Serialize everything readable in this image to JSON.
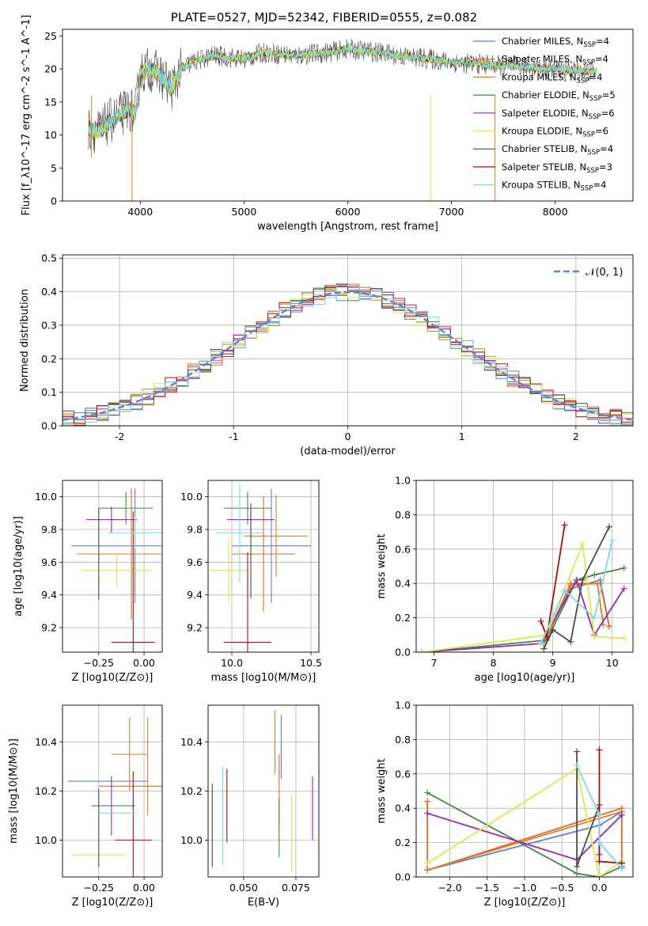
{
  "title": "PLATE=0527, MJD=52342, FIBERID=0555, z=0.082",
  "colors": {
    "Chabrier MILES": "#5b84d6",
    "Salpeter MILES": "#e06c1e",
    "Kroupa MILES": "#e07b2e",
    "Chabrier ELODIE": "#4f7f55",
    "Salpeter ELODIE": "#9b27b0",
    "Kroupa ELODIE": "#d8ea4e",
    "Chabrier STELIB": "#4a4a4a",
    "Salpeter STELIB": "#a90f0f",
    "Kroupa STELIB": "#7fd8e8"
  },
  "chart_data": [
    {
      "id": "spectrum",
      "type": "line",
      "xlabel": "wavelength [Angstrom, rest frame]",
      "ylabel": "Flux [f_λ10^-17 erg cm^-2 s^-1 A^-1]",
      "xlim": [
        3250,
        8750
      ],
      "ylim": [
        0,
        26
      ],
      "xticks": [
        4000,
        5000,
        6000,
        7000,
        8000
      ],
      "yticks": [
        0,
        5,
        10,
        15,
        20,
        25
      ],
      "legend_position": "right",
      "legend": [
        {
          "label": "Chabrier MILES",
          "sub": "SSP",
          "n": "=4"
        },
        {
          "label": "Salpeter MILES",
          "sub": "SSP",
          "n": "=4"
        },
        {
          "label": "Kroupa MILES",
          "sub": "SSP",
          "n": "=4"
        },
        {
          "label": "Chabrier ELODIE",
          "sub": "SSP",
          "n": "=5"
        },
        {
          "label": "Salpeter ELODIE",
          "sub": "SSP",
          "n": "=6"
        },
        {
          "label": "Kroupa ELODIE",
          "sub": "SSP",
          "n": "=6"
        },
        {
          "label": "Chabrier STELIB",
          "sub": "SSP",
          "n": "=4"
        },
        {
          "label": "Salpeter STELIB",
          "sub": "SSP",
          "n": "=3"
        },
        {
          "label": "Kroupa STELIB",
          "sub": "SSP",
          "n": "=4"
        }
      ],
      "observed_envelope": {
        "x": [
          3500,
          3600,
          3700,
          3800,
          3900,
          3950,
          4000,
          4100,
          4200,
          4300,
          4400,
          4500,
          4700,
          5000,
          5200,
          5500,
          5800,
          6000,
          6300,
          6500,
          6800,
          7000,
          7200,
          7500,
          7800,
          8000,
          8200,
          8400
        ],
        "y": [
          11,
          10.5,
          12,
          13,
          14,
          13,
          19.5,
          20,
          19,
          17,
          20,
          21,
          22,
          21.5,
          22.5,
          22,
          22.5,
          23,
          22.5,
          22,
          21.5,
          21,
          20.8,
          20.5,
          20.2,
          20,
          19.8,
          19.5
        ]
      },
      "dips": [
        {
          "x": 3530,
          "y": 6.5
        },
        {
          "x": 3920,
          "y": 0
        },
        {
          "x": 6800,
          "y": 0
        },
        {
          "x": 7420,
          "y": 0
        }
      ]
    },
    {
      "id": "residuals",
      "type": "histogram",
      "xlabel": "(data-model)/error",
      "ylabel": "Normed distribution",
      "xlim": [
        -2.5,
        2.5
      ],
      "ylim": [
        0,
        0.51
      ],
      "xticks": [
        -2,
        -1,
        0,
        1,
        2
      ],
      "yticks": [
        0.0,
        0.1,
        0.2,
        0.3,
        0.4,
        0.5
      ],
      "grid": true,
      "legend": [
        {
          "label": "𝒩(0, 1)"
        }
      ],
      "bin_width": 0.1
    },
    {
      "id": "age-vs-Z",
      "type": "errorbar",
      "xlabel": "Z [log10(Z/Z⊙)]",
      "ylabel": "age [log10(age/yr)]",
      "xlim": [
        -0.45,
        0.1
      ],
      "ylim": [
        9.05,
        10.1
      ],
      "xticks": [
        -0.25,
        0.0
      ],
      "xticklabels": [
        "−0.25",
        "0.00"
      ],
      "yticks": [
        9.2,
        9.4,
        9.6,
        9.8,
        10.0
      ],
      "points": [
        {
          "model": "Chabrier MILES",
          "x": -0.05,
          "xerr": 0.35,
          "y": 9.7,
          "yerr": 0.35
        },
        {
          "model": "Salpeter MILES",
          "x": -0.07,
          "xerr": 0.3,
          "y": 9.65,
          "yerr": 0.4
        },
        {
          "model": "Kroupa MILES",
          "x": -0.07,
          "xerr": 0.3,
          "y": 9.65,
          "yerr": 0.3
        },
        {
          "model": "Chabrier ELODIE",
          "x": -0.1,
          "xerr": 0.15,
          "y": 9.93,
          "yerr": 0.1
        },
        {
          "model": "Salpeter ELODIE",
          "x": -0.18,
          "xerr": 0.14,
          "y": 9.86,
          "yerr": 0.08
        },
        {
          "model": "Kroupa ELODIE",
          "x": -0.15,
          "xerr": 0.2,
          "y": 9.55,
          "yerr": 0.1
        },
        {
          "model": "Chabrier STELIB",
          "x": -0.25,
          "xerr": 0.0,
          "y": 9.65,
          "yerr": 0.28
        },
        {
          "model": "Salpeter STELIB",
          "x": -0.06,
          "xerr": 0.12,
          "y": 9.11,
          "yerr": 0.8
        },
        {
          "model": "Kroupa STELIB",
          "x": -0.05,
          "xerr": 0.15,
          "y": 9.78,
          "yerr": 0.1
        }
      ]
    },
    {
      "id": "age-vs-mass",
      "type": "errorbar",
      "xlabel": "mass [log10(M/M⊙)]",
      "ylabel": "",
      "xlim": [
        9.85,
        10.55
      ],
      "ylim": [
        9.05,
        10.1
      ],
      "xticks": [
        10.0,
        10.5
      ],
      "yticks": [
        9.2,
        9.4,
        9.6,
        9.8,
        10.0
      ],
      "points": [
        {
          "model": "Chabrier MILES",
          "x": 10.25,
          "xerr": 0.25,
          "y": 9.7,
          "yerr": 0.35
        },
        {
          "model": "Salpeter MILES",
          "x": 10.2,
          "xerr": 0.2,
          "y": 9.65,
          "yerr": 0.35
        },
        {
          "model": "Kroupa MILES",
          "x": 10.28,
          "xerr": 0.2,
          "y": 9.76,
          "yerr": 0.25
        },
        {
          "model": "Chabrier ELODIE",
          "x": 10.1,
          "xerr": 0.15,
          "y": 9.93,
          "yerr": 0.1
        },
        {
          "model": "Salpeter ELODIE",
          "x": 10.12,
          "xerr": 0.15,
          "y": 9.86,
          "yerr": 0.1
        },
        {
          "model": "Kroupa ELODIE",
          "x": 9.98,
          "xerr": 0.12,
          "y": 9.55,
          "yerr": 0.2
        },
        {
          "model": "Chabrier STELIB",
          "x": 10.12,
          "xerr": 0.0,
          "y": 9.65,
          "yerr": 0.27
        },
        {
          "model": "Salpeter STELIB",
          "x": 10.1,
          "xerr": 0.15,
          "y": 9.11,
          "yerr": 0.55
        },
        {
          "model": "Kroupa STELIB",
          "x": 10.05,
          "xerr": 0.15,
          "y": 9.78,
          "yerr": 0.3
        }
      ]
    },
    {
      "id": "weight-vs-age",
      "type": "line",
      "xlabel": "age [log10(age/yr)]",
      "ylabel": "mass weight",
      "xlim": [
        6.7,
        10.35
      ],
      "ylim": [
        0.0,
        1.0
      ],
      "xticks": [
        7,
        8,
        9,
        10
      ],
      "yticks": [
        0.0,
        0.2,
        0.4,
        0.6,
        0.8,
        1.0
      ],
      "series": [
        {
          "model": "Chabrier MILES",
          "x": [
            8.85,
            9.3,
            9.8,
            9.95
          ],
          "y": [
            0.06,
            0.37,
            0.42,
            0.15
          ]
        },
        {
          "model": "Salpeter MILES",
          "x": [
            8.85,
            9.3,
            9.8,
            9.95
          ],
          "y": [
            0.05,
            0.4,
            0.4,
            0.15
          ]
        },
        {
          "model": "Kroupa MILES",
          "x": [
            8.85,
            9.3,
            9.75,
            9.85
          ],
          "y": [
            0.05,
            0.39,
            0.4,
            0.16
          ]
        },
        {
          "model": "Chabrier ELODIE",
          "x": [
            6.8,
            8.9,
            9.4,
            9.7,
            10.2
          ],
          "y": [
            0.0,
            0.07,
            0.42,
            0.45,
            0.49
          ]
        },
        {
          "model": "Salpeter ELODIE",
          "x": [
            6.8,
            8.8,
            9.4,
            9.7,
            10.2
          ],
          "y": [
            0.0,
            0.05,
            0.42,
            0.1,
            0.37
          ]
        },
        {
          "model": "Kroupa ELODIE",
          "x": [
            6.8,
            8.9,
            9.5,
            9.7,
            10.2
          ],
          "y": [
            0.0,
            0.1,
            0.63,
            0.09,
            0.08
          ]
        },
        {
          "model": "Chabrier STELIB",
          "x": [
            8.85,
            9.0,
            9.3,
            9.5,
            9.95
          ],
          "y": [
            0.02,
            0.13,
            0.06,
            0.42,
            0.73
          ]
        },
        {
          "model": "Salpeter STELIB",
          "x": [
            8.8,
            8.9,
            9.2
          ],
          "y": [
            0.18,
            0.09,
            0.74
          ]
        },
        {
          "model": "Kroupa STELIB",
          "x": [
            8.8,
            9.2,
            9.7,
            10.0
          ],
          "y": [
            0.05,
            0.36,
            0.2,
            0.65
          ]
        }
      ]
    },
    {
      "id": "mass-vs-Z",
      "type": "errorbar",
      "xlabel": "Z [log10(Z/Z⊙)]",
      "ylabel": "mass [log10(M/M⊙)]",
      "xlim": [
        -0.45,
        0.1
      ],
      "ylim": [
        9.85,
        10.55
      ],
      "xticks": [
        -0.25,
        0.0
      ],
      "xticklabels": [
        "−0.25",
        "0.00"
      ],
      "yticks": [
        10.0,
        10.2,
        10.4
      ],
      "points": [
        {
          "model": "Chabrier MILES",
          "x": -0.2,
          "xerr": 0.22,
          "y": 10.24,
          "yerr": 0.0
        },
        {
          "model": "Salpeter MILES",
          "x": -0.05,
          "xerr": 0.2,
          "y": 10.22,
          "yerr": 0.0
        },
        {
          "model": "Kroupa MILES",
          "x": 0.02,
          "xerr": 0.0,
          "y": 10.3,
          "yerr": 0.2
        },
        {
          "model": "Chabrier ELODIE",
          "x": -0.17,
          "xerr": 0.12,
          "y": 10.14,
          "yerr": 0.0
        },
        {
          "model": "Salpeter ELODIE",
          "x": -0.18,
          "xerr": 0.0,
          "y": 10.14,
          "yerr": 0.12
        },
        {
          "model": "Kroupa ELODIE",
          "x": -0.25,
          "xerr": 0.15,
          "y": 9.94,
          "yerr": 0.0
        },
        {
          "model": "Chabrier STELIB",
          "x": -0.25,
          "xerr": 0.0,
          "y": 10.05,
          "yerr": 0.16
        },
        {
          "model": "Salpeter STELIB",
          "x": -0.06,
          "xerr": 0.1,
          "y": 10.0,
          "yerr": 0.28
        },
        {
          "model": "Kroupa STELIB",
          "x": -0.15,
          "xerr": 0.1,
          "y": 10.11,
          "yerr": 0.0
        },
        {
          "model": "Kroupa MILES",
          "x": -0.08,
          "xerr": 0.1,
          "y": 10.35,
          "yerr": 0.15
        }
      ]
    },
    {
      "id": "mass-vs-EBV",
      "type": "errorbar",
      "xlabel": "E(B-V)",
      "ylabel": "",
      "xlim": [
        0.033,
        0.086
      ],
      "ylim": [
        9.85,
        10.55
      ],
      "xticks": [
        0.05,
        0.075
      ],
      "xticklabels": [
        "0.050",
        "0.075"
      ],
      "yticks": [
        10.0,
        10.2,
        10.4
      ],
      "points": [
        {
          "model": "Chabrier STELIB",
          "x": 0.035,
          "y": 10.06,
          "yerr": 0.17
        },
        {
          "model": "Kroupa STELIB",
          "x": 0.04,
          "y": 10.1,
          "yerr": 0.2
        },
        {
          "model": "Salpeter STELIB",
          "x": 0.042,
          "y": 10.14,
          "yerr": 0.15
        },
        {
          "model": "Kroupa MILES",
          "x": 0.065,
          "y": 10.4,
          "yerr": 0.13
        },
        {
          "model": "Chabrier MILES",
          "x": 0.068,
          "y": 10.38,
          "yerr": 0.13
        },
        {
          "model": "Salpeter MILES",
          "x": 0.067,
          "y": 10.2,
          "yerr": 0.15
        },
        {
          "model": "Chabrier ELODIE",
          "x": 0.067,
          "y": 10.05,
          "yerr": 0.12
        },
        {
          "model": "Kroupa ELODIE",
          "x": 0.073,
          "y": 10.03,
          "yerr": 0.16
        },
        {
          "model": "Salpeter ELODIE",
          "x": 0.083,
          "y": 10.13,
          "yerr": 0.13
        }
      ]
    },
    {
      "id": "weight-vs-Z",
      "type": "line",
      "xlabel": "Z [log10(Z/Z⊙)]",
      "ylabel": "mass weight",
      "xlim": [
        -2.45,
        0.45
      ],
      "ylim": [
        0.0,
        1.0
      ],
      "xticks": [
        -2.0,
        -1.5,
        -1.0,
        -0.5,
        0.0
      ],
      "xticklabels": [
        "−2.0",
        "−1.5",
        "−1.0",
        "−0.5",
        "0.0"
      ],
      "yticks": [
        0.0,
        0.2,
        0.4,
        0.6,
        0.8,
        1.0
      ],
      "series": [
        {
          "model": "Chabrier MILES",
          "x": [
            -2.3,
            0.0,
            0.3,
            0.3
          ],
          "y": [
            0.04,
            0.3,
            0.38,
            0.05
          ]
        },
        {
          "model": "Salpeter MILES",
          "x": [
            -2.3,
            -2.3,
            0.3,
            0.3
          ],
          "y": [
            0.44,
            0.04,
            0.4,
            0.08
          ]
        },
        {
          "model": "Kroupa MILES",
          "x": [
            -2.3,
            0.3,
            0.3
          ],
          "y": [
            0.04,
            0.38,
            0.06
          ]
        },
        {
          "model": "Chabrier ELODIE",
          "x": [
            -2.3,
            -0.3,
            0.0,
            0.3
          ],
          "y": [
            0.49,
            0.02,
            0.0,
            0.06
          ]
        },
        {
          "model": "Salpeter ELODIE",
          "x": [
            -2.3,
            -0.3,
            0.3
          ],
          "y": [
            0.37,
            0.1,
            0.36
          ]
        },
        {
          "model": "Kroupa ELODIE",
          "x": [
            -2.3,
            -0.3,
            0.0,
            0.3
          ],
          "y": [
            0.08,
            0.63,
            0.0,
            0.09
          ]
        },
        {
          "model": "Chabrier STELIB",
          "x": [
            -0.3,
            -0.3,
            0.0,
            0.0
          ],
          "y": [
            0.73,
            0.06,
            0.42,
            0.13
          ]
        },
        {
          "model": "Salpeter STELIB",
          "x": [
            0.0,
            0.0,
            0.3
          ],
          "y": [
            0.74,
            0.09,
            0.08
          ]
        },
        {
          "model": "Kroupa STELIB",
          "x": [
            -0.3,
            0.0,
            0.0,
            0.3
          ],
          "y": [
            0.65,
            0.36,
            0.2,
            0.05
          ]
        }
      ]
    }
  ]
}
